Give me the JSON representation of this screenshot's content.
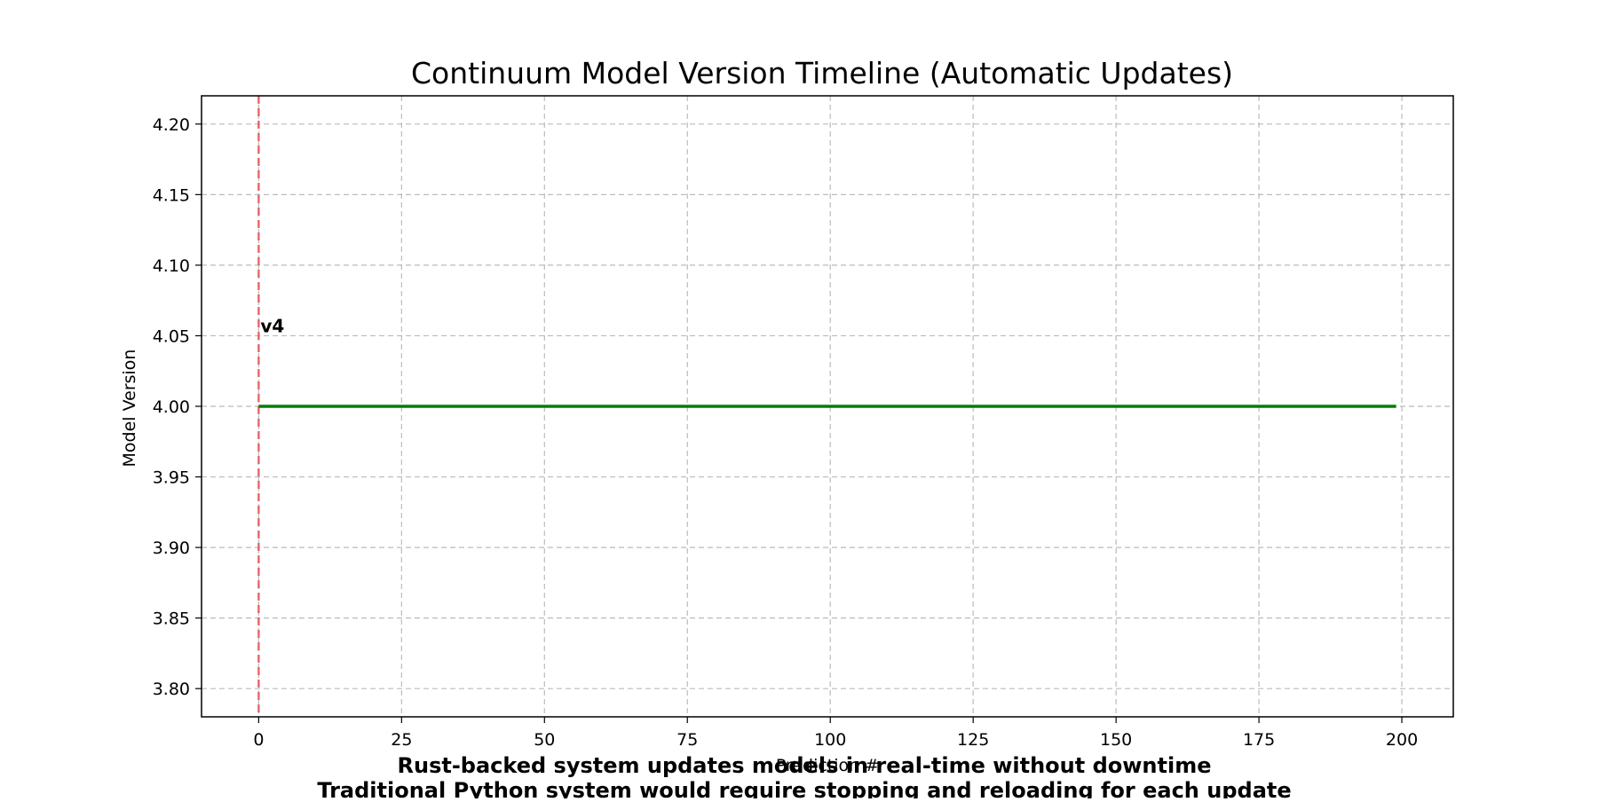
{
  "chart_data": {
    "type": "line",
    "title": "Continuum Model Version Timeline (Automatic Updates)",
    "xlabel": "Prediction #",
    "ylabel": "Model Version",
    "xlim": [
      -10,
      209
    ],
    "ylim": [
      3.78,
      4.22
    ],
    "xticks": [
      0,
      25,
      50,
      75,
      100,
      125,
      150,
      175,
      200
    ],
    "yticks": [
      3.8,
      3.85,
      3.9,
      3.95,
      4.0,
      4.05,
      4.1,
      4.15,
      4.2
    ],
    "grid": true,
    "series": [
      {
        "x": [
          0,
          199
        ],
        "y": [
          4,
          4
        ],
        "color": "#008000"
      }
    ],
    "vlines": [
      {
        "x": 0,
        "color": "#e8585a",
        "style": "dashed",
        "label": "v4",
        "label_y": 4.05
      }
    ]
  },
  "captions": [
    "Rust-backed system updates models in real-time without downtime",
    "Traditional Python system would require stopping and reloading for each update"
  ]
}
